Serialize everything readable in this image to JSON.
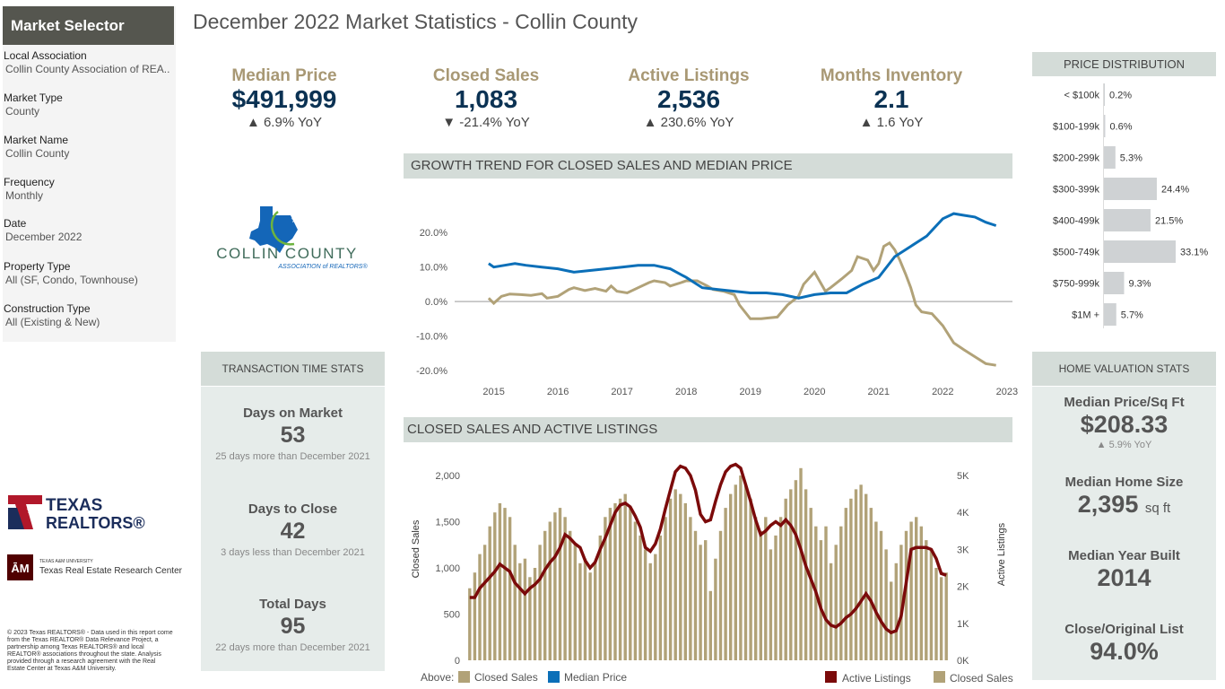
{
  "selector": {
    "title": "Market Selector",
    "filters": [
      {
        "label": "Local Association",
        "value": "Collin County Association of REA.."
      },
      {
        "label": "Market Type",
        "value": "County"
      },
      {
        "label": "Market Name",
        "value": "Collin County"
      },
      {
        "label": "Frequency",
        "value": "Monthly"
      },
      {
        "label": "Date",
        "value": "December 2022"
      },
      {
        "label": "Property Type",
        "value": "All (SF, Condo, Townhouse)"
      },
      {
        "label": "Construction Type",
        "value": "All (Existing & New)"
      }
    ]
  },
  "page_title": "December 2022 Market Statistics - Collin County",
  "kpis": [
    {
      "label": "Median Price",
      "value": "$491,999",
      "change": "▲ 6.9% YoY"
    },
    {
      "label": "Closed Sales",
      "value": "1,083",
      "change": "▼ -21.4% YoY"
    },
    {
      "label": "Active Listings",
      "value": "2,536",
      "change": "▲ 230.6% YoY"
    },
    {
      "label": "Months Inventory",
      "value": "2.1",
      "change": "▲ 1.6 YoY"
    }
  ],
  "logos": {
    "collin_line1": "COLLIN COUNTY",
    "collin_line2": "ASSOCIATION of REALTORS®",
    "texas_line1": "TEXAS",
    "texas_line2": "REALTORS®",
    "tamu_line1": "TEXAS A&M UNIVERSITY",
    "tamu_line2": "Texas Real Estate Research Center"
  },
  "colors": {
    "gold": "#b1a278",
    "blue": "#0b6fb8",
    "maroon": "#7b0a0a",
    "header_bg": "#d4dcd8",
    "panel_bg": "#e6ecea",
    "bar_gray": "#cfd2d4",
    "kpi_label": "#a89874",
    "kpi_value": "#0b3253"
  },
  "transaction_stats": {
    "title": "TRANSACTION TIME STATS",
    "items": [
      {
        "label": "Days on Market",
        "value": "53",
        "comparison": "25 days more than December 2021"
      },
      {
        "label": "Days to Close",
        "value": "42",
        "comparison": "3 days less than December 2021"
      },
      {
        "label": "Total Days",
        "value": "95",
        "comparison": "22 days more than December 2021"
      }
    ]
  },
  "home_valuation": {
    "title": "HOME VALUATION STATS",
    "items": [
      {
        "label": "Median Price/Sq Ft",
        "value": "$208.33",
        "unit": "",
        "note": "▲ 5.9% YoY"
      },
      {
        "label": "Median Home Size",
        "value": "2,395",
        "unit": "sq ft",
        "note": ""
      },
      {
        "label": "Median Year Built",
        "value": "2014",
        "unit": "",
        "note": ""
      },
      {
        "label": "Close/Original List",
        "value": "94.0%",
        "unit": "",
        "note": ""
      }
    ]
  },
  "copyright": "© 2023 Texas REALTORS® - Data used in this report come from the Texas REALTOR® Data Relevance Project, a partnership among Texas REALTORS® and local REALTOR® associations throughout the state. Analysis provided through a research agreement with the Real Estate Center at Texas A&M University.",
  "chart_data": [
    {
      "type": "bar",
      "title": "PRICE DISTRIBUTION",
      "orientation": "horizontal",
      "categories": [
        "< $100k",
        "$100-199k",
        "$200-299k",
        "$300-399k",
        "$400-499k",
        "$500-749k",
        "$750-999k",
        "$1M +"
      ],
      "values": [
        0.2,
        0.6,
        5.3,
        24.4,
        21.5,
        33.1,
        9.3,
        5.7
      ],
      "value_labels": [
        "0.2%",
        "0.6%",
        "5.3%",
        "24.4%",
        "21.5%",
        "33.1%",
        "9.3%",
        "5.7%"
      ]
    },
    {
      "type": "line",
      "title": "GROWTH TREND FOR CLOSED SALES AND MEDIAN PRICE",
      "x_ticks": [
        "2015",
        "2016",
        "2017",
        "2018",
        "2019",
        "2020",
        "2021",
        "2022",
        "2023"
      ],
      "y_ticks": [
        "20.0%",
        "10.0%",
        "0.0%",
        "-10.0%",
        "-20.0%"
      ],
      "ylim": [
        -20,
        25
      ],
      "xlim": [
        2014.6,
        2023.1
      ],
      "legend_prefix": "Above:",
      "series": [
        {
          "name": "Closed Sales",
          "points": [
            [
              2014.92,
              1
            ],
            [
              2015.0,
              -0.5
            ],
            [
              2015.12,
              1.5
            ],
            [
              2015.25,
              2.2
            ],
            [
              2015.42,
              2
            ],
            [
              2015.58,
              1.8
            ],
            [
              2015.75,
              2.3
            ],
            [
              2015.83,
              1
            ],
            [
              2016.0,
              1.5
            ],
            [
              2016.17,
              3.5
            ],
            [
              2016.25,
              4
            ],
            [
              2016.42,
              3.2
            ],
            [
              2016.58,
              3.8
            ],
            [
              2016.75,
              3
            ],
            [
              2016.83,
              4.5
            ],
            [
              2016.92,
              3
            ],
            [
              2017.08,
              2.5
            ],
            [
              2017.25,
              4
            ],
            [
              2017.42,
              5.5
            ],
            [
              2017.5,
              6
            ],
            [
              2017.67,
              5.5
            ],
            [
              2017.75,
              4.5
            ],
            [
              2017.92,
              5.5
            ],
            [
              2018.0,
              6
            ],
            [
              2018.17,
              6
            ],
            [
              2018.33,
              4.5
            ],
            [
              2018.42,
              3.5
            ],
            [
              2018.58,
              3
            ],
            [
              2018.75,
              2
            ],
            [
              2018.83,
              -1
            ],
            [
              2019.0,
              -5
            ],
            [
              2019.17,
              -5
            ],
            [
              2019.25,
              -4.8
            ],
            [
              2019.42,
              -4.5
            ],
            [
              2019.58,
              -1
            ],
            [
              2019.75,
              1.5
            ],
            [
              2019.83,
              5
            ],
            [
              2020.0,
              8.5
            ],
            [
              2020.17,
              3
            ],
            [
              2020.25,
              4
            ],
            [
              2020.42,
              6.5
            ],
            [
              2020.58,
              9
            ],
            [
              2020.67,
              13
            ],
            [
              2020.83,
              12
            ],
            [
              2020.92,
              9
            ],
            [
              2021.0,
              11
            ],
            [
              2021.08,
              16
            ],
            [
              2021.17,
              17
            ],
            [
              2021.25,
              15
            ],
            [
              2021.33,
              12
            ],
            [
              2021.42,
              8
            ],
            [
              2021.5,
              4
            ],
            [
              2021.58,
              -1
            ],
            [
              2021.67,
              -3
            ],
            [
              2021.83,
              -3.5
            ],
            [
              2022.0,
              -7
            ],
            [
              2022.17,
              -12
            ],
            [
              2022.33,
              -14
            ],
            [
              2022.5,
              -16
            ],
            [
              2022.67,
              -18
            ],
            [
              2022.83,
              -18.5
            ]
          ]
        },
        {
          "name": "Median Price",
          "points": [
            [
              2014.92,
              11
            ],
            [
              2015.0,
              10
            ],
            [
              2015.17,
              10.5
            ],
            [
              2015.33,
              11
            ],
            [
              2015.5,
              10.5
            ],
            [
              2015.75,
              10
            ],
            [
              2016.0,
              9.5
            ],
            [
              2016.25,
              8.5
            ],
            [
              2016.5,
              9
            ],
            [
              2016.75,
              9.5
            ],
            [
              2017.0,
              10
            ],
            [
              2017.25,
              10.5
            ],
            [
              2017.5,
              10.5
            ],
            [
              2017.75,
              9.5
            ],
            [
              2018.0,
              7
            ],
            [
              2018.25,
              4
            ],
            [
              2018.5,
              3.5
            ],
            [
              2018.75,
              3
            ],
            [
              2019.0,
              2.5
            ],
            [
              2019.25,
              2.5
            ],
            [
              2019.5,
              2
            ],
            [
              2019.75,
              1
            ],
            [
              2020.0,
              2
            ],
            [
              2020.25,
              2.5
            ],
            [
              2020.5,
              2.5
            ],
            [
              2020.75,
              5
            ],
            [
              2021.0,
              7
            ],
            [
              2021.25,
              13
            ],
            [
              2021.5,
              16
            ],
            [
              2021.75,
              19
            ],
            [
              2022.0,
              24
            ],
            [
              2022.17,
              25.5
            ],
            [
              2022.33,
              25
            ],
            [
              2022.5,
              24.5
            ],
            [
              2022.67,
              23
            ],
            [
              2022.83,
              22
            ]
          ]
        }
      ]
    },
    {
      "type": "bar",
      "title": "CLOSED SALES AND ACTIVE LISTINGS",
      "ylabel": "Closed Sales",
      "y2label": "Active Listings",
      "ylim": [
        0,
        2000
      ],
      "y2lim": [
        0,
        5000
      ],
      "y_ticks": [
        "2,000",
        "1,500",
        "1,000",
        "500",
        "0"
      ],
      "y2_ticks": [
        "5K",
        "4K",
        "3K",
        "2K",
        "1K",
        "0K"
      ],
      "series": [
        {
          "name": "Closed Sales",
          "values": [
            780,
            950,
            1150,
            1250,
            1450,
            1600,
            1700,
            1650,
            1550,
            1250,
            1050,
            1100,
            900,
            1000,
            1250,
            1400,
            1500,
            1600,
            1650,
            1550,
            1400,
            1250,
            1050,
            1100,
            950,
            1050,
            1350,
            1550,
            1650,
            1700,
            1750,
            1800,
            1650,
            1500,
            1350,
            1200,
            1050,
            1150,
            1350,
            1550,
            1750,
            1850,
            1800,
            1700,
            1550,
            1400,
            1250,
            1300,
            750,
            1100,
            1400,
            1650,
            1800,
            1900,
            2000,
            1900,
            1750,
            1550,
            1400,
            1550,
            1200,
            1350,
            1550,
            1750,
            1850,
            1950,
            2080,
            1850,
            1650,
            1450,
            1300,
            1450,
            1050,
            1250,
            1450,
            1650,
            1750,
            1850,
            1900,
            1800,
            1650,
            1500,
            1400,
            1200,
            850,
            1050,
            1250,
            1400,
            1500,
            1550,
            1450,
            1300,
            1200,
            1000,
            900,
            950
          ]
        },
        {
          "name": "Active Listings",
          "values": [
            1700,
            1700,
            1950,
            2100,
            2250,
            2400,
            2600,
            2500,
            2400,
            2100,
            1950,
            1800,
            1950,
            2050,
            2200,
            2450,
            2650,
            2800,
            3050,
            3400,
            3300,
            3150,
            3050,
            2700,
            2500,
            2650,
            3000,
            3300,
            3650,
            4000,
            4200,
            4250,
            4150,
            3900,
            3600,
            3050,
            2950,
            3150,
            3550,
            4100,
            4600,
            5100,
            5250,
            5200,
            5000,
            4600,
            3950,
            3750,
            3800,
            4300,
            4750,
            5100,
            5250,
            5300,
            5200,
            4750,
            4300,
            3800,
            3400,
            3500,
            3650,
            3750,
            3650,
            3800,
            3650,
            3400,
            3000,
            2550,
            2200,
            1850,
            1400,
            1100,
            950,
            900,
            1000,
            1150,
            1250,
            1400,
            1600,
            1800,
            1600,
            1300,
            1050,
            850,
            750,
            800,
            1200,
            2100,
            3000,
            3050,
            3050,
            3050,
            3000,
            2750,
            2350,
            2300
          ]
        }
      ]
    }
  ]
}
